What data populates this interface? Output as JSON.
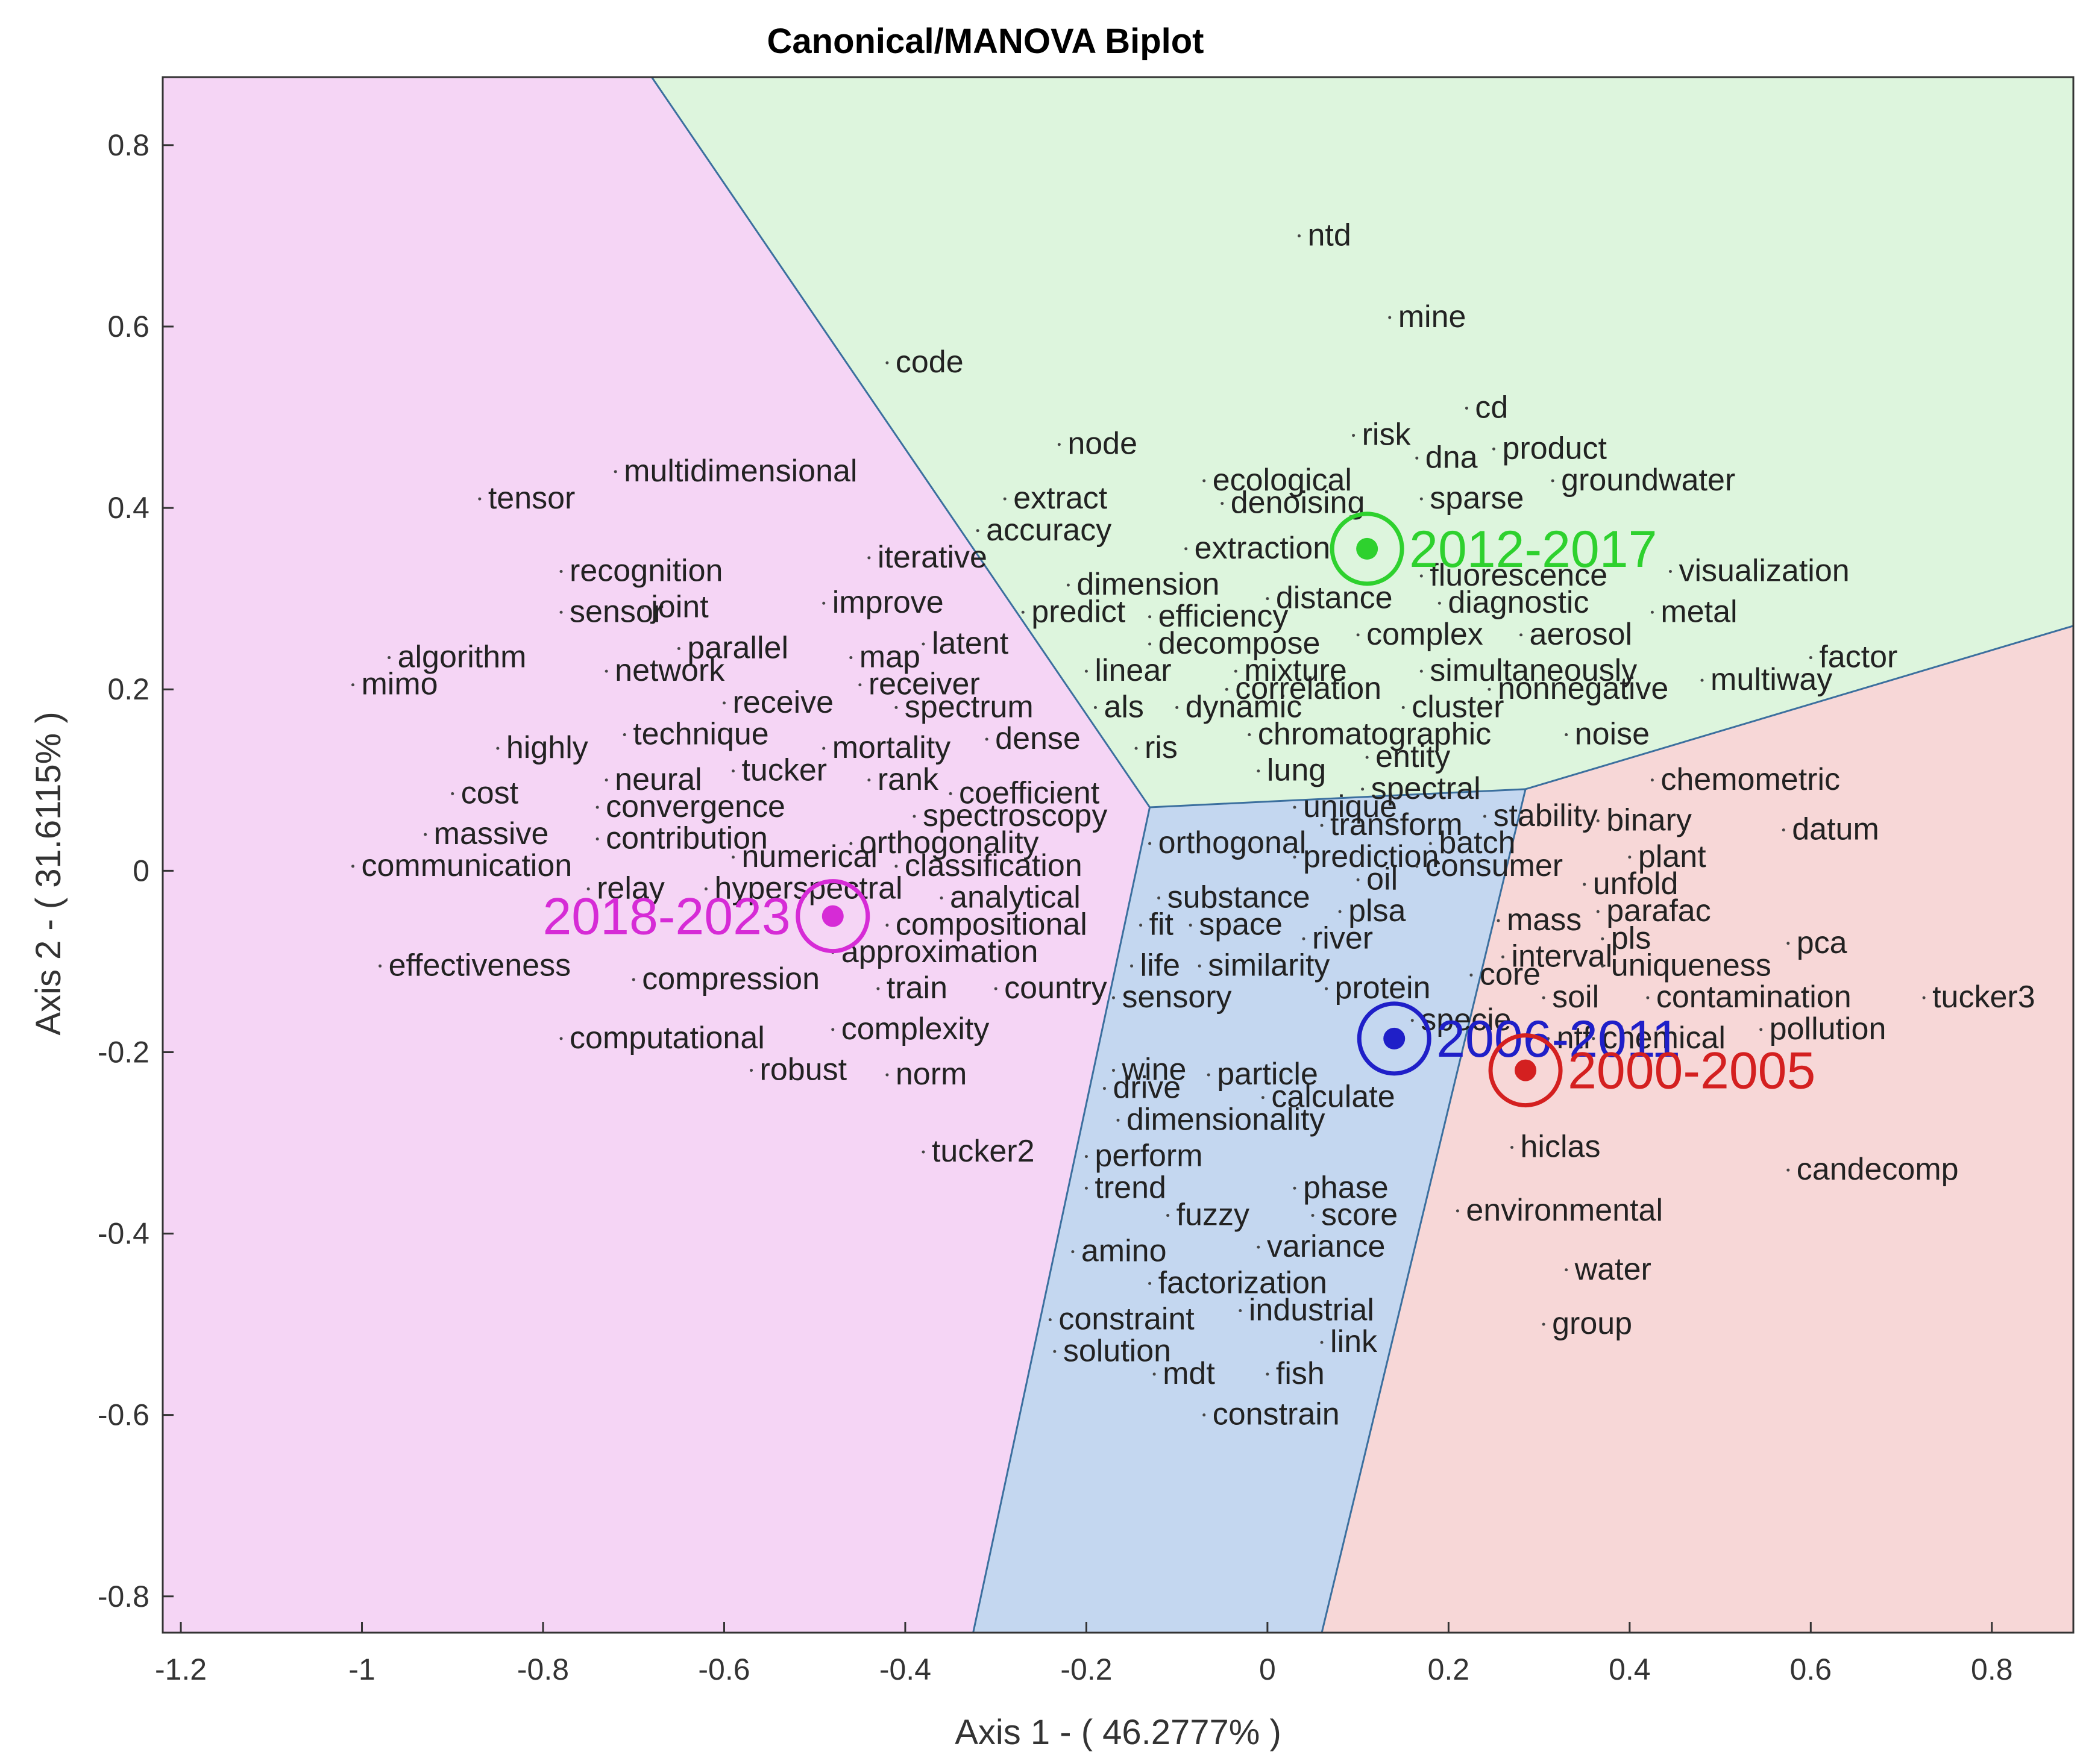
{
  "chart_data": {
    "type": "scatter",
    "title": "Canonical/MANOVA Biplot",
    "xlabel": "Axis 1 - ( 46.2777% )",
    "ylabel": "Axis 2 - ( 31.6115% )",
    "xlim": [
      -1.22,
      0.89
    ],
    "ylim": [
      -0.84,
      0.875
    ],
    "xticks": [
      -1.2,
      -1,
      -0.8,
      -0.6,
      -0.4,
      -0.2,
      0,
      0.2,
      0.4,
      0.6,
      0.8
    ],
    "yticks": [
      -0.8,
      -0.6,
      -0.4,
      -0.2,
      0,
      0.2,
      0.4,
      0.6,
      0.8
    ],
    "grid": false,
    "regions": [
      {
        "name": "2018-2023",
        "color": "#f5d5f5",
        "polygon": [
          [
            -1.22,
            0.875
          ],
          [
            -0.68,
            0.875
          ],
          [
            -0.13,
            0.07
          ],
          [
            -0.325,
            -0.84
          ],
          [
            -1.22,
            -0.84
          ]
        ]
      },
      {
        "name": "2012-2017",
        "color": "#ddf5dd",
        "polygon": [
          [
            -0.68,
            0.875
          ],
          [
            0.89,
            0.875
          ],
          [
            0.89,
            0.27
          ],
          [
            0.285,
            0.09
          ],
          [
            -0.13,
            0.07
          ]
        ]
      },
      {
        "name": "2006-2011",
        "color": "#c4d7f0",
        "polygon": [
          [
            -0.13,
            0.07
          ],
          [
            0.285,
            0.09
          ],
          [
            0.06,
            -0.84
          ],
          [
            -0.325,
            -0.84
          ]
        ]
      },
      {
        "name": "2000-2005",
        "color": "#f7d7d7",
        "polygon": [
          [
            0.285,
            0.09
          ],
          [
            0.89,
            0.27
          ],
          [
            0.89,
            -0.84
          ],
          [
            0.06,
            -0.84
          ]
        ]
      }
    ],
    "centroids": [
      {
        "name": "2018-2023",
        "x": -0.48,
        "y": -0.05,
        "color": "#d62bd6"
      },
      {
        "name": "2012-2017",
        "x": 0.11,
        "y": 0.355,
        "color": "#2ed12e"
      },
      {
        "name": "2006-2011",
        "x": 0.14,
        "y": -0.185,
        "color": "#1f1fc8"
      },
      {
        "name": "2000-2005",
        "x": 0.285,
        "y": -0.22,
        "color": "#d42020"
      }
    ],
    "terms": [
      {
        "t": "ntd",
        "x": 0.035,
        "y": 0.7
      },
      {
        "t": "mine",
        "x": 0.135,
        "y": 0.61
      },
      {
        "t": "code",
        "x": -0.42,
        "y": 0.56
      },
      {
        "t": "cd",
        "x": 0.22,
        "y": 0.51
      },
      {
        "t": "risk",
        "x": 0.095,
        "y": 0.48
      },
      {
        "t": "product",
        "x": 0.25,
        "y": 0.465
      },
      {
        "t": "node",
        "x": -0.23,
        "y": 0.47
      },
      {
        "t": "dna",
        "x": 0.165,
        "y": 0.455
      },
      {
        "t": "multidimensional",
        "x": -0.72,
        "y": 0.44
      },
      {
        "t": "ecological",
        "x": -0.07,
        "y": 0.43
      },
      {
        "t": "groundwater",
        "x": 0.315,
        "y": 0.43
      },
      {
        "t": "tensor",
        "x": -0.87,
        "y": 0.41
      },
      {
        "t": "extract",
        "x": -0.29,
        "y": 0.41
      },
      {
        "t": "sparse",
        "x": 0.17,
        "y": 0.41
      },
      {
        "t": "denoising",
        "x": -0.05,
        "y": 0.405
      },
      {
        "t": "accuracy",
        "x": -0.32,
        "y": 0.375
      },
      {
        "t": "extraction",
        "x": -0.09,
        "y": 0.355
      },
      {
        "t": "iterative",
        "x": -0.44,
        "y": 0.345
      },
      {
        "t": "visualization",
        "x": 0.445,
        "y": 0.33
      },
      {
        "t": "recognition",
        "x": -0.78,
        "y": 0.33
      },
      {
        "t": "fluorescence",
        "x": 0.17,
        "y": 0.325
      },
      {
        "t": "dimension",
        "x": -0.22,
        "y": 0.315
      },
      {
        "t": "distance",
        "x": 0.0,
        "y": 0.3
      },
      {
        "t": "diagnostic",
        "x": 0.19,
        "y": 0.295
      },
      {
        "t": "improve",
        "x": -0.49,
        "y": 0.295
      },
      {
        "t": "sensor",
        "x": -0.78,
        "y": 0.285
      },
      {
        "t": "joint",
        "x": -0.69,
        "y": 0.29
      },
      {
        "t": "predict",
        "x": -0.27,
        "y": 0.285
      },
      {
        "t": "efficiency",
        "x": -0.13,
        "y": 0.28
      },
      {
        "t": "metal",
        "x": 0.425,
        "y": 0.285
      },
      {
        "t": "complex",
        "x": 0.1,
        "y": 0.26
      },
      {
        "t": "aerosol",
        "x": 0.28,
        "y": 0.26
      },
      {
        "t": "latent",
        "x": -0.38,
        "y": 0.25
      },
      {
        "t": "parallel",
        "x": -0.65,
        "y": 0.245
      },
      {
        "t": "decompose",
        "x": -0.13,
        "y": 0.25
      },
      {
        "t": "factor",
        "x": 0.6,
        "y": 0.235
      },
      {
        "t": "map",
        "x": -0.46,
        "y": 0.235
      },
      {
        "t": "algorithm",
        "x": -0.97,
        "y": 0.235
      },
      {
        "t": "network",
        "x": -0.73,
        "y": 0.22
      },
      {
        "t": "linear",
        "x": -0.2,
        "y": 0.22
      },
      {
        "t": "mixture",
        "x": -0.035,
        "y": 0.22
      },
      {
        "t": "simultaneously",
        "x": 0.17,
        "y": 0.22
      },
      {
        "t": "multiway",
        "x": 0.48,
        "y": 0.21
      },
      {
        "t": "receiver",
        "x": -0.45,
        "y": 0.205
      },
      {
        "t": "mimo",
        "x": -1.01,
        "y": 0.205
      },
      {
        "t": "correlation",
        "x": -0.045,
        "y": 0.2
      },
      {
        "t": "nonnegative",
        "x": 0.245,
        "y": 0.2
      },
      {
        "t": "receive",
        "x": -0.6,
        "y": 0.185
      },
      {
        "t": "spectrum",
        "x": -0.41,
        "y": 0.18
      },
      {
        "t": "als",
        "x": -0.19,
        "y": 0.18
      },
      {
        "t": "dynamic",
        "x": -0.1,
        "y": 0.18
      },
      {
        "t": "cluster",
        "x": 0.15,
        "y": 0.18
      },
      {
        "t": "technique",
        "x": -0.71,
        "y": 0.15
      },
      {
        "t": "chromatographic",
        "x": -0.02,
        "y": 0.15
      },
      {
        "t": "noise",
        "x": 0.33,
        "y": 0.15
      },
      {
        "t": "highly",
        "x": -0.85,
        "y": 0.135
      },
      {
        "t": "mortality",
        "x": -0.49,
        "y": 0.135
      },
      {
        "t": "dense",
        "x": -0.31,
        "y": 0.145
      },
      {
        "t": "ris",
        "x": -0.145,
        "y": 0.135
      },
      {
        "t": "entity",
        "x": 0.11,
        "y": 0.125
      },
      {
        "t": "tucker",
        "x": -0.59,
        "y": 0.11
      },
      {
        "t": "neural",
        "x": -0.73,
        "y": 0.1
      },
      {
        "t": "rank",
        "x": -0.44,
        "y": 0.1
      },
      {
        "t": "lung",
        "x": -0.01,
        "y": 0.11
      },
      {
        "t": "chemometric",
        "x": 0.425,
        "y": 0.1
      },
      {
        "t": "spectral",
        "x": 0.105,
        "y": 0.09
      },
      {
        "t": "cost",
        "x": -0.9,
        "y": 0.085
      },
      {
        "t": "coefficient",
        "x": -0.35,
        "y": 0.085
      },
      {
        "t": "convergence",
        "x": -0.74,
        "y": 0.07
      },
      {
        "t": "unique",
        "x": 0.03,
        "y": 0.07
      },
      {
        "t": "spectroscopy",
        "x": -0.39,
        "y": 0.06
      },
      {
        "t": "stability",
        "x": 0.24,
        "y": 0.06
      },
      {
        "t": "transform",
        "x": 0.06,
        "y": 0.05
      },
      {
        "t": "binary",
        "x": 0.365,
        "y": 0.055
      },
      {
        "t": "datum",
        "x": 0.57,
        "y": 0.045
      },
      {
        "t": "massive",
        "x": -0.93,
        "y": 0.04
      },
      {
        "t": "contribution",
        "x": -0.74,
        "y": 0.035
      },
      {
        "t": "orthogonality",
        "x": -0.46,
        "y": 0.03
      },
      {
        "t": "orthogonal",
        "x": -0.13,
        "y": 0.03
      },
      {
        "t": "batch",
        "x": 0.18,
        "y": 0.03
      },
      {
        "t": "numerical",
        "x": -0.59,
        "y": 0.015
      },
      {
        "t": "prediction",
        "x": 0.03,
        "y": 0.015
      },
      {
        "t": "plant",
        "x": 0.4,
        "y": 0.015
      },
      {
        "t": "communication",
        "x": -1.01,
        "y": 0.005
      },
      {
        "t": "classification",
        "x": -0.41,
        "y": 0.005
      },
      {
        "t": "consumer",
        "x": 0.165,
        "y": 0.005
      },
      {
        "t": "oil",
        "x": 0.1,
        "y": -0.01
      },
      {
        "t": "unfold",
        "x": 0.35,
        "y": -0.015
      },
      {
        "t": "relay",
        "x": -0.75,
        "y": -0.02
      },
      {
        "t": "hyperspectral",
        "x": -0.62,
        "y": -0.02
      },
      {
        "t": "substance",
        "x": -0.12,
        "y": -0.03
      },
      {
        "t": "analytical",
        "x": -0.36,
        "y": -0.03
      },
      {
        "t": "plsa",
        "x": 0.08,
        "y": -0.045
      },
      {
        "t": "parafac",
        "x": 0.365,
        "y": -0.045
      },
      {
        "t": "mass",
        "x": 0.255,
        "y": -0.055
      },
      {
        "t": "compositional",
        "x": -0.42,
        "y": -0.06
      },
      {
        "t": "fit",
        "x": -0.14,
        "y": -0.06
      },
      {
        "t": "space",
        "x": -0.085,
        "y": -0.06
      },
      {
        "t": "river",
        "x": 0.04,
        "y": -0.075
      },
      {
        "t": "pls",
        "x": 0.37,
        "y": -0.075
      },
      {
        "t": "pca",
        "x": 0.575,
        "y": -0.08
      },
      {
        "t": "approximation",
        "x": -0.48,
        "y": -0.09
      },
      {
        "t": "interval",
        "x": 0.26,
        "y": -0.095
      },
      {
        "t": "uniqueness",
        "x": 0.37,
        "y": -0.105
      },
      {
        "t": "effectiveness",
        "x": -0.98,
        "y": -0.105
      },
      {
        "t": "life",
        "x": -0.15,
        "y": -0.105
      },
      {
        "t": "similarity",
        "x": -0.075,
        "y": -0.105
      },
      {
        "t": "core",
        "x": 0.225,
        "y": -0.115
      },
      {
        "t": "compression",
        "x": -0.7,
        "y": -0.12
      },
      {
        "t": "train",
        "x": -0.43,
        "y": -0.13
      },
      {
        "t": "country",
        "x": -0.3,
        "y": -0.13
      },
      {
        "t": "protein",
        "x": 0.065,
        "y": -0.13
      },
      {
        "t": "sensory",
        "x": -0.17,
        "y": -0.14
      },
      {
        "t": "soil",
        "x": 0.305,
        "y": -0.14
      },
      {
        "t": "contamination",
        "x": 0.42,
        "y": -0.14
      },
      {
        "t": "tucker3",
        "x": 0.725,
        "y": -0.14
      },
      {
        "t": "specie",
        "x": 0.16,
        "y": -0.165
      },
      {
        "t": "complexity",
        "x": -0.48,
        "y": -0.175
      },
      {
        "t": "pollution",
        "x": 0.545,
        "y": -0.175
      },
      {
        "t": "computational",
        "x": -0.78,
        "y": -0.185
      },
      {
        "t": "ntf",
        "x": 0.31,
        "y": -0.185
      },
      {
        "t": "chemical",
        "x": 0.36,
        "y": -0.185
      },
      {
        "t": "robust",
        "x": -0.57,
        "y": -0.22
      },
      {
        "t": "norm",
        "x": -0.42,
        "y": -0.225
      },
      {
        "t": "wine",
        "x": -0.17,
        "y": -0.22
      },
      {
        "t": "particle",
        "x": -0.065,
        "y": -0.225
      },
      {
        "t": "drive",
        "x": -0.18,
        "y": -0.24
      },
      {
        "t": "calculate",
        "x": -0.005,
        "y": -0.25
      },
      {
        "t": "dimensionality",
        "x": -0.165,
        "y": -0.275
      },
      {
        "t": "hiclas",
        "x": 0.27,
        "y": -0.305
      },
      {
        "t": "tucker2",
        "x": -0.38,
        "y": -0.31
      },
      {
        "t": "perform",
        "x": -0.2,
        "y": -0.315
      },
      {
        "t": "candecomp",
        "x": 0.575,
        "y": -0.33
      },
      {
        "t": "trend",
        "x": -0.2,
        "y": -0.35
      },
      {
        "t": "phase",
        "x": 0.03,
        "y": -0.35
      },
      {
        "t": "fuzzy",
        "x": -0.11,
        "y": -0.38
      },
      {
        "t": "score",
        "x": 0.05,
        "y": -0.38
      },
      {
        "t": "environmental",
        "x": 0.21,
        "y": -0.375
      },
      {
        "t": "amino",
        "x": -0.215,
        "y": -0.42
      },
      {
        "t": "variance",
        "x": -0.01,
        "y": -0.415
      },
      {
        "t": "water",
        "x": 0.33,
        "y": -0.44
      },
      {
        "t": "factorization",
        "x": -0.13,
        "y": -0.455
      },
      {
        "t": "constraint",
        "x": -0.24,
        "y": -0.495
      },
      {
        "t": "industrial",
        "x": -0.03,
        "y": -0.485
      },
      {
        "t": "group",
        "x": 0.305,
        "y": -0.5
      },
      {
        "t": "link",
        "x": 0.06,
        "y": -0.52
      },
      {
        "t": "solution",
        "x": -0.235,
        "y": -0.53
      },
      {
        "t": "mdt",
        "x": -0.125,
        "y": -0.555
      },
      {
        "t": "fish",
        "x": 0.0,
        "y": -0.555
      },
      {
        "t": "constrain",
        "x": -0.07,
        "y": -0.6
      }
    ]
  }
}
